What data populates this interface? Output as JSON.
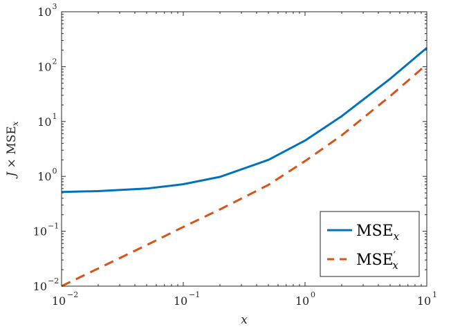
{
  "chart_data": {
    "type": "line",
    "xscale": "log",
    "yscale": "log",
    "xlim": [
      0.01,
      10
    ],
    "ylim": [
      0.01,
      1000
    ],
    "xlabel": "x",
    "ylabel": "J × MSE",
    "ylabel_subscript": "x",
    "grid": false,
    "legend_placement": "bottom-right",
    "x_ticks": [
      {
        "value": 0.01,
        "base": "10",
        "exp": "−2"
      },
      {
        "value": 0.1,
        "base": "10",
        "exp": "−1"
      },
      {
        "value": 1,
        "base": "10",
        "exp": "0"
      },
      {
        "value": 10,
        "base": "10",
        "exp": "1"
      }
    ],
    "y_ticks": [
      {
        "value": 0.01,
        "base": "10",
        "exp": "−2"
      },
      {
        "value": 0.1,
        "base": "10",
        "exp": "−1"
      },
      {
        "value": 1,
        "base": "10",
        "exp": "0"
      },
      {
        "value": 10,
        "base": "10",
        "exp": "1"
      },
      {
        "value": 100,
        "base": "10",
        "exp": "2"
      },
      {
        "value": 1000,
        "base": "10",
        "exp": "3"
      }
    ],
    "series": [
      {
        "name": "MSE",
        "name_sub": "x",
        "name_prime": "",
        "color": "#0072BD",
        "style": "solid",
        "x": [
          0.01,
          0.02,
          0.05,
          0.1,
          0.2,
          0.5,
          1,
          2,
          5,
          10
        ],
        "y": [
          0.52,
          0.54,
          0.6,
          0.72,
          0.98,
          2.0,
          4.5,
          12.5,
          60,
          220
        ]
      },
      {
        "name": "MSE",
        "name_sub": "x",
        "name_prime": "′",
        "color": "#D95319",
        "style": "dashed",
        "x": [
          0.01,
          0.02,
          0.05,
          0.1,
          0.2,
          0.5,
          1,
          2,
          5,
          10
        ],
        "y": [
          0.01,
          0.021,
          0.056,
          0.12,
          0.25,
          0.7,
          1.9,
          5.6,
          29,
          110
        ]
      }
    ]
  }
}
